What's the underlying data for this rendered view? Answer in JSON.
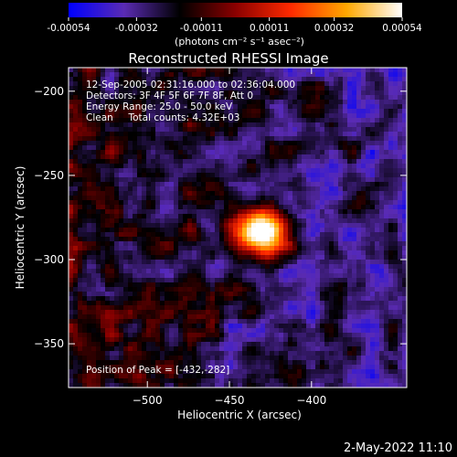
{
  "chart_data": {
    "type": "heatmap",
    "title": "Reconstructed RHESSI Image",
    "xlabel": "Heliocentric X (arcsec)",
    "ylabel": "Heliocentric Y (arcsec)",
    "xlim": [
      -548,
      -342
    ],
    "ylim": [
      -376,
      -186
    ],
    "x_ticks": [
      -500,
      -450,
      -400
    ],
    "y_ticks": [
      -200,
      -250,
      -300,
      -350
    ],
    "colorbar": {
      "unit_label": "(photons cm⁻² s⁻¹ asec⁻²)",
      "min": -0.00054,
      "max": 0.00054,
      "tick_values": [
        -0.00054,
        -0.00032,
        -0.00011,
        0.00011,
        0.00032,
        0.00054
      ],
      "tick_labels": [
        "-0.00054",
        "-0.00032",
        "-0.00011",
        "0.00011",
        "0.00032",
        "0.00054"
      ],
      "colors": [
        "#0000ff",
        "#5a2bb4",
        "#000000",
        "#8a0000",
        "#ff2a00",
        "#ffa800",
        "#ffffff"
      ]
    },
    "info_lines": [
      "12-Sep-2005 02:31:16.000 to 02:36:04.000",
      "Detectors: 3F 4F 5F 6F 7F 8F, Att 0",
      "Energy Range: 25.0 - 50.0 keV",
      "Clean     Total counts: 4.32E+03"
    ],
    "peak_label": "Position of Peak = [-432,-282]",
    "peak": [
      -432,
      -282
    ],
    "timestamp": "2-May-2022 11:10"
  }
}
